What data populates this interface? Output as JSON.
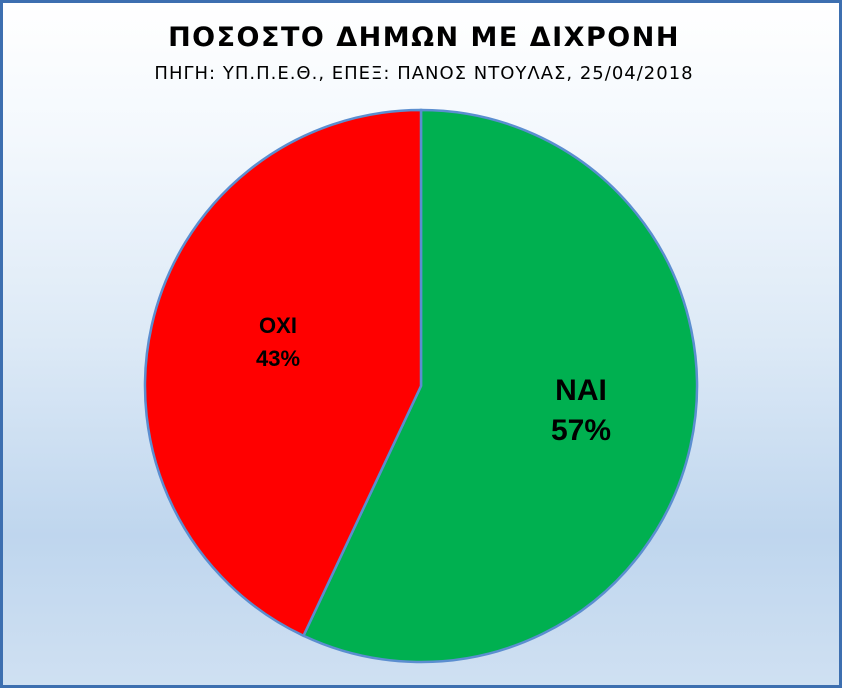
{
  "chart_data": {
    "type": "pie",
    "title": "ΠΟΣΟΣΤΟ ΔΗΜΩΝ ΜΕ ΔΙΧΡΟΝΗ",
    "subtitle": "ΠΗΓΗ: ΥΠ.Π.Ε.Θ., ΕΠΕΞ: ΠΑΝΟΣ ΝΤΟΥΛΑΣ, 25/04/2018",
    "slices": [
      {
        "label": "ΝΑΙ",
        "value": 57,
        "display": "57%",
        "color": "#00b050"
      },
      {
        "label": "ΟΧΙ",
        "value": 43,
        "display": "43%",
        "color": "#ff0000"
      }
    ],
    "legend": "none",
    "start_angle_deg": 0,
    "direction": "clockwise"
  }
}
